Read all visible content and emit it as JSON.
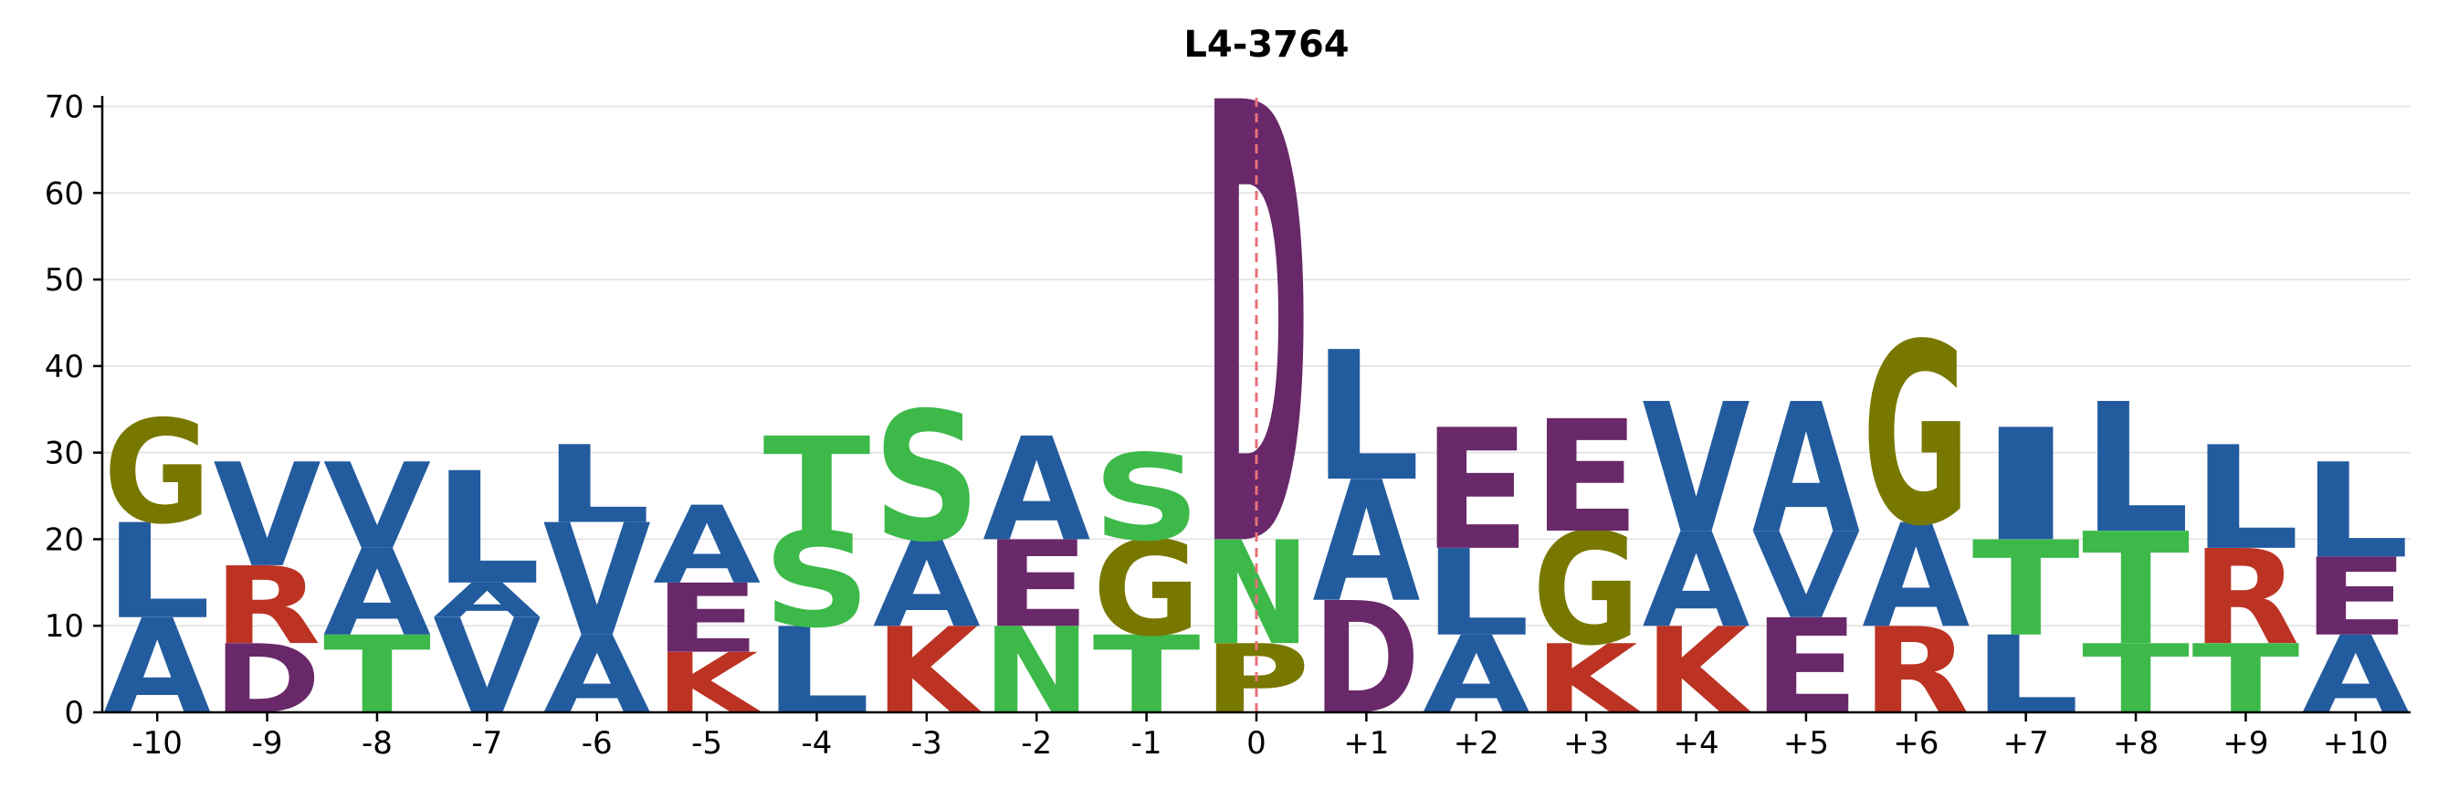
{
  "chart_data": {
    "type": "sequence-logo",
    "title": "L4-3764",
    "xlabel": "",
    "ylabel": "",
    "ylim": [
      0,
      71
    ],
    "yticks": [
      0,
      10,
      20,
      30,
      40,
      50,
      60,
      70
    ],
    "ytick_labels": [
      "0",
      "10",
      "20",
      "30",
      "40",
      "50",
      "60",
      "70"
    ],
    "grid": "horizontal",
    "center_line": "0",
    "colors": {
      "hydrophobic": "#235B9F",
      "polar": "#3DB94A",
      "acidic": "#692869",
      "basic": "#BC3324",
      "special": "#787800",
      "center_line": "#E8707A"
    },
    "positions": [
      {
        "label": "-10",
        "letters": [
          [
            "A",
            0,
            11
          ],
          [
            "L",
            11,
            22
          ],
          [
            "G",
            22,
            34
          ]
        ]
      },
      {
        "label": "-9",
        "letters": [
          [
            "D",
            0,
            8
          ],
          [
            "R",
            8,
            17
          ],
          [
            "V",
            17,
            29
          ]
        ]
      },
      {
        "label": "-8",
        "letters": [
          [
            "T",
            0,
            9
          ],
          [
            "A",
            9,
            19
          ],
          [
            "V",
            19,
            29
          ]
        ]
      },
      {
        "label": "-7",
        "letters": [
          [
            "V",
            0,
            11
          ],
          [
            "A",
            11,
            15
          ],
          [
            "L",
            15,
            28
          ]
        ]
      },
      {
        "label": "-6",
        "letters": [
          [
            "A",
            0,
            9
          ],
          [
            "V",
            9,
            22
          ],
          [
            "L",
            22,
            31
          ]
        ]
      },
      {
        "label": "-5",
        "letters": [
          [
            "K",
            0,
            7
          ],
          [
            "E",
            7,
            15
          ],
          [
            "A",
            15,
            24
          ]
        ]
      },
      {
        "label": "-4",
        "letters": [
          [
            "L",
            0,
            10
          ],
          [
            "S",
            10,
            21
          ],
          [
            "T",
            21,
            32
          ]
        ]
      },
      {
        "label": "-3",
        "letters": [
          [
            "K",
            0,
            10
          ],
          [
            "A",
            10,
            20
          ],
          [
            "S",
            20,
            35
          ]
        ]
      },
      {
        "label": "-2",
        "letters": [
          [
            "N",
            0,
            10
          ],
          [
            "E",
            10,
            20
          ],
          [
            "A",
            20,
            32
          ]
        ]
      },
      {
        "label": "-1",
        "letters": [
          [
            "T",
            0,
            9
          ],
          [
            "G",
            9,
            20
          ],
          [
            "S",
            20,
            30
          ]
        ]
      },
      {
        "label": "0",
        "letters": [
          [
            "P",
            0,
            8
          ],
          [
            "N",
            8,
            20
          ],
          [
            "D",
            20,
            71
          ]
        ]
      },
      {
        "label": "+1",
        "letters": [
          [
            "D",
            0,
            13
          ],
          [
            "A",
            13,
            27
          ],
          [
            "L",
            27,
            42
          ]
        ]
      },
      {
        "label": "+2",
        "letters": [
          [
            "A",
            0,
            9
          ],
          [
            "L",
            9,
            19
          ],
          [
            "E",
            19,
            33
          ]
        ]
      },
      {
        "label": "+3",
        "letters": [
          [
            "K",
            0,
            8
          ],
          [
            "G",
            8,
            21
          ],
          [
            "E",
            21,
            34
          ]
        ]
      },
      {
        "label": "+4",
        "letters": [
          [
            "K",
            0,
            10
          ],
          [
            "A",
            10,
            21
          ],
          [
            "V",
            21,
            36
          ]
        ]
      },
      {
        "label": "+5",
        "letters": [
          [
            "E",
            0,
            11
          ],
          [
            "V",
            11,
            21
          ],
          [
            "A",
            21,
            36
          ]
        ]
      },
      {
        "label": "+6",
        "letters": [
          [
            "R",
            0,
            10
          ],
          [
            "A",
            10,
            22
          ],
          [
            "G",
            22,
            43
          ]
        ]
      },
      {
        "label": "+7",
        "letters": [
          [
            "L",
            0,
            9
          ],
          [
            "T",
            9,
            20
          ],
          [
            "I",
            20,
            33
          ]
        ]
      },
      {
        "label": "+8",
        "letters": [
          [
            "T",
            0,
            8
          ],
          [
            "T",
            8,
            21
          ],
          [
            "L",
            21,
            36
          ]
        ]
      },
      {
        "label": "+9",
        "letters": [
          [
            "T",
            0,
            8
          ],
          [
            "R",
            8,
            19
          ],
          [
            "L",
            19,
            31
          ]
        ]
      },
      {
        "label": "+10",
        "letters": [
          [
            "A",
            0,
            9
          ],
          [
            "E",
            9,
            18
          ],
          [
            "L",
            18,
            29
          ]
        ]
      }
    ]
  }
}
